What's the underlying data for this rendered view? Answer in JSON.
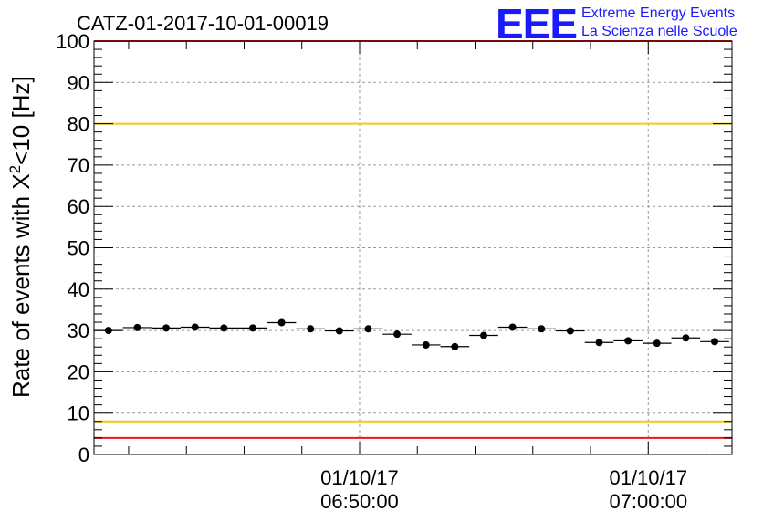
{
  "header": {
    "run_title": "CATZ-01-2017-10-01-00019",
    "logo_text": "EEE",
    "logo_line1": "Extreme Energy Events",
    "logo_line2": "La Scienza nelle Scuole"
  },
  "chart_data": {
    "type": "scatter",
    "title": "CATZ-01-2017-10-01-00019",
    "ylabel_main": "Rate of events with X",
    "ylabel_sup": "2",
    "ylabel_tail": "<10 [Hz]",
    "ylim": [
      0,
      100
    ],
    "yticks": [
      0,
      10,
      20,
      30,
      40,
      50,
      60,
      70,
      80,
      90,
      100
    ],
    "xlim_minutes": [
      40.8,
      62.9
    ],
    "xticks": [
      {
        "minute": 50,
        "date": "01/10/17",
        "time": "06:50:00"
      },
      {
        "minute": 60,
        "date": "01/10/17",
        "time": "07:00:00"
      }
    ],
    "grid": true,
    "reference_lines": [
      {
        "value": 100,
        "color": "#e8161b"
      },
      {
        "value": 80,
        "color": "#f2cc0c"
      },
      {
        "value": 8,
        "color": "#f2cc0c"
      },
      {
        "value": 4,
        "color": "#e8161b"
      }
    ],
    "bin_width_minutes": 1.0,
    "series": [
      {
        "marker_color": "#000000",
        "x_minutes": [
          41.3,
          42.3,
          43.3,
          44.3,
          45.3,
          46.3,
          47.3,
          48.3,
          49.3,
          50.3,
          51.3,
          52.3,
          53.3,
          54.3,
          55.3,
          56.3,
          57.3,
          58.3,
          59.3,
          60.3,
          61.3,
          62.3
        ],
        "values": [
          30.0,
          30.7,
          30.6,
          30.8,
          30.6,
          30.6,
          31.9,
          30.4,
          29.9,
          30.4,
          29.1,
          26.5,
          26.1,
          28.8,
          30.8,
          30.4,
          29.9,
          27.1,
          27.5,
          26.9,
          28.2,
          27.3
        ]
      }
    ]
  }
}
